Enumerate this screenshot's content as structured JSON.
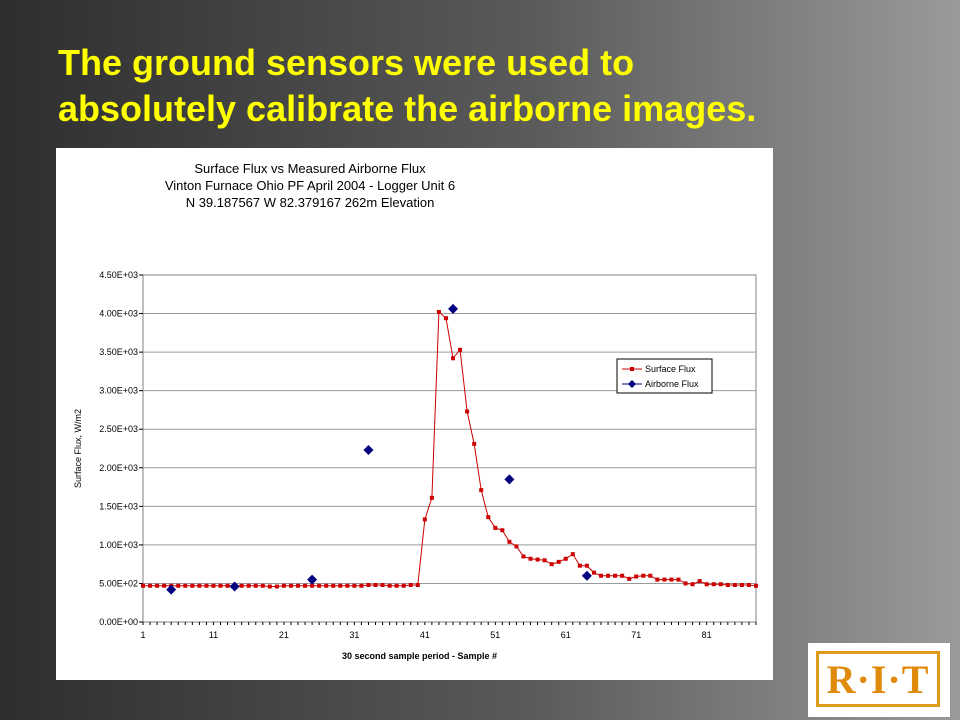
{
  "slide": {
    "title_line1": "The ground sensors were used to",
    "title_line2": "absolutely calibrate the airborne images."
  },
  "logo": {
    "text": "R·I·T"
  },
  "colors": {
    "title": "#ffff00",
    "surface": "#cc0000",
    "airborne": "#000080",
    "logo": "#e08a0a"
  },
  "chart_data": {
    "type": "line",
    "title": [
      "Surface Flux vs Measured Airborne Flux",
      "Vinton Furnace Ohio PF April 2004  - Logger Unit 6",
      "N 39.187567 W 82.379167 262m Elevation"
    ],
    "xlabel": "30 second sample period - Sample #",
    "ylabel": "Surface Flux, W/m2",
    "xlim": [
      1,
      88
    ],
    "ylim": [
      0,
      4500
    ],
    "xticks": [
      1,
      11,
      21,
      31,
      41,
      51,
      61,
      71,
      81
    ],
    "yticks": [
      0,
      500,
      1000,
      1500,
      2000,
      2500,
      3000,
      3500,
      4000,
      4500
    ],
    "ytick_labels": [
      "0.00E+00",
      "5.00E+02",
      "1.00E+03",
      "1.50E+03",
      "2.00E+03",
      "2.50E+03",
      "3.00E+03",
      "3.50E+03",
      "4.00E+03",
      "4.50E+03"
    ],
    "grid": true,
    "legend_position": "right",
    "series": [
      {
        "name": "Surface Flux",
        "marker": "square",
        "y": [
          470,
          470,
          470,
          470,
          470,
          470,
          470,
          470,
          470,
          470,
          470,
          470,
          470,
          470,
          470,
          470,
          470,
          470,
          460,
          460,
          470,
          470,
          470,
          470,
          470,
          470,
          470,
          470,
          470,
          470,
          470,
          470,
          480,
          480,
          480,
          470,
          470,
          470,
          480,
          480,
          1330,
          1610,
          4020,
          3940,
          3420,
          3530,
          2730,
          2310,
          1710,
          1360,
          1220,
          1190,
          1040,
          980,
          850,
          820,
          810,
          800,
          750,
          780,
          820,
          880,
          730,
          730,
          640,
          600,
          600,
          600,
          600,
          560,
          590,
          600,
          600,
          550,
          550,
          550,
          550,
          500,
          490,
          530,
          490,
          490,
          490,
          480,
          480,
          480,
          480,
          470
        ]
      },
      {
        "name": "Airborne Flux",
        "marker": "diamond",
        "points": [
          [
            5,
            420
          ],
          [
            14,
            460
          ],
          [
            25,
            550
          ],
          [
            33,
            2230
          ],
          [
            45,
            4060
          ],
          [
            53,
            1850
          ],
          [
            64,
            600
          ]
        ]
      }
    ]
  }
}
